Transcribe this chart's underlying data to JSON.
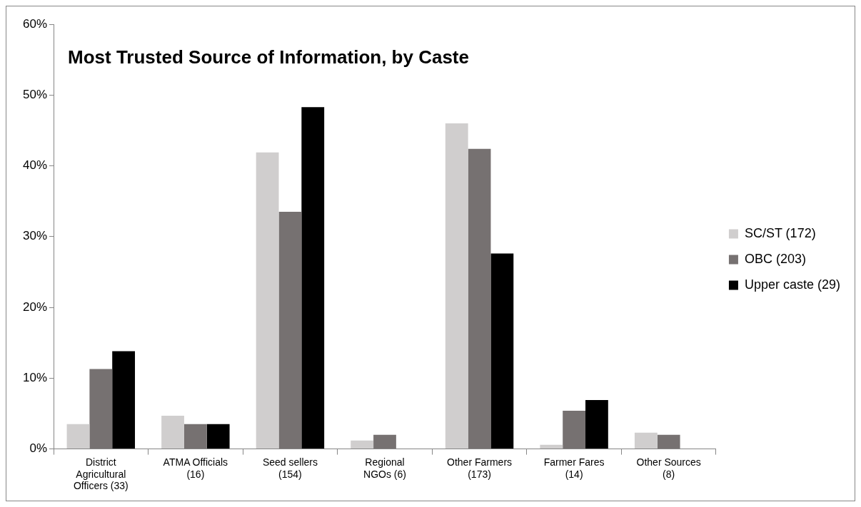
{
  "chart_data": {
    "type": "bar",
    "title": "Most Trusted Source of Information, by Caste",
    "categories": [
      "District Agricultural Officers (33)",
      "ATMA Officials (16)",
      "Seed sellers (154)",
      "Regional NGOs (6)",
      "Other Farmers (173)",
      "Farmer Fares (14)",
      "Other Sources (8)"
    ],
    "series": [
      {
        "name": "SC/ST (172)",
        "color": "#d0cece",
        "values": [
          3.5,
          4.7,
          41.9,
          1.2,
          46.0,
          0.6,
          2.3
        ]
      },
      {
        "name": "OBC (203)",
        "color": "#767171",
        "values": [
          11.3,
          3.5,
          33.5,
          2.0,
          42.4,
          5.4,
          2.0
        ]
      },
      {
        "name": "Upper caste (29)",
        "color": "#000000",
        "values": [
          13.8,
          3.5,
          48.3,
          0,
          27.6,
          6.9,
          0
        ]
      }
    ],
    "ylim": [
      0,
      60
    ],
    "yticks": [
      {
        "value": 0,
        "label": "0%"
      },
      {
        "value": 10,
        "label": "10%"
      },
      {
        "value": 20,
        "label": "20%"
      },
      {
        "value": 30,
        "label": "30%"
      },
      {
        "value": 40,
        "label": "40%"
      },
      {
        "value": 50,
        "label": "50%"
      },
      {
        "value": 60,
        "label": "60%"
      }
    ],
    "grid": false,
    "legend": "right"
  }
}
